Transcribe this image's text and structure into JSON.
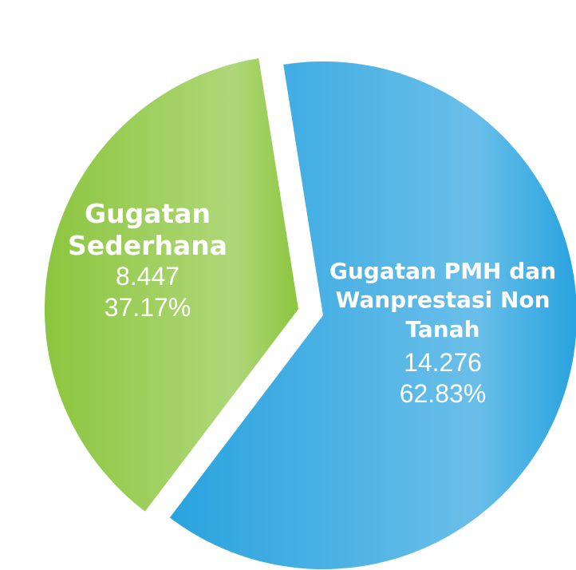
{
  "chart_data": {
    "type": "pie",
    "categories": [
      "Gugatan Sederhana",
      "Gugatan PMH dan Wanprestasi Non Tanah"
    ],
    "values": [
      8447,
      14276
    ],
    "value_labels": [
      "8.447",
      "14.276"
    ],
    "percentages": [
      37.17,
      62.83
    ],
    "percentage_labels": [
      "37.17%",
      "62.83%"
    ],
    "colors": [
      "#8cc63f",
      "#29a3df"
    ],
    "exploded": [
      true,
      false
    ]
  }
}
